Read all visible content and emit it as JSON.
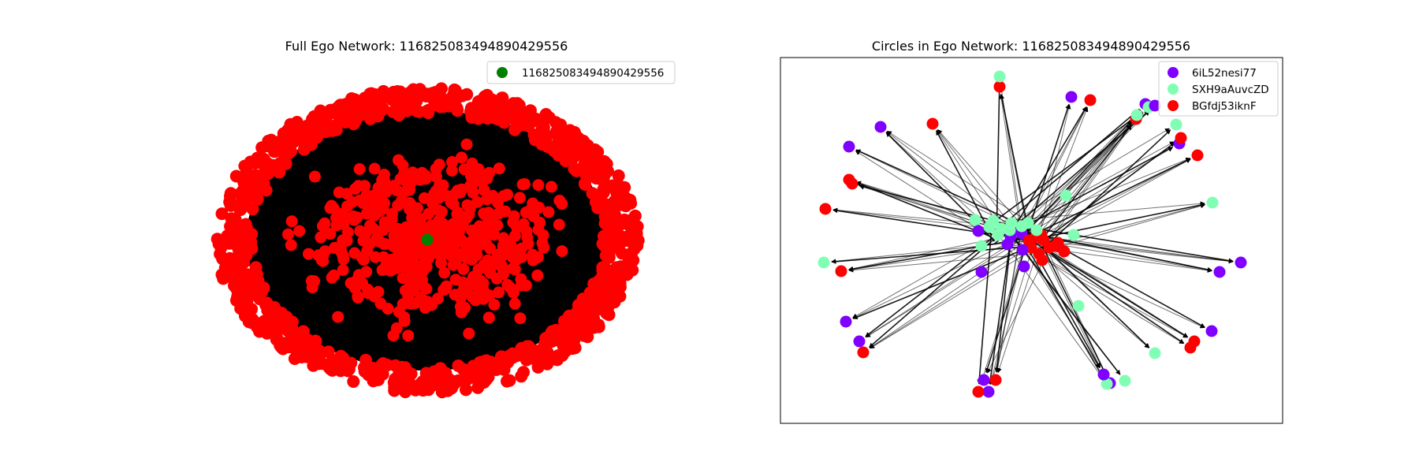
{
  "chart_data": [
    {
      "type": "network",
      "title": "Full Ego Network: 116825083494890429556",
      "frame": false,
      "legend": {
        "position": "top-right",
        "entries": [
          {
            "label": "116825083494890429556",
            "color": "#008000"
          }
        ]
      },
      "ego": {
        "label": "116825083494890429556",
        "color": "#008000"
      },
      "alter_color": "#ff0000",
      "edge_color": "#000000",
      "layout": "spring"
    },
    {
      "type": "network",
      "title": "Circles in Ego Network: 116825083494890429556",
      "frame": true,
      "directed": true,
      "legend": {
        "position": "top-right",
        "entries": [
          {
            "label": "6iL52nesi77",
            "color": "#8000ff"
          },
          {
            "label": "SXH9aAuvcZD",
            "color": "#80ffb4"
          },
          {
            "label": "BGfdj53iknF",
            "color": "#ff0000"
          }
        ]
      },
      "edge_color": "#000000"
    }
  ]
}
